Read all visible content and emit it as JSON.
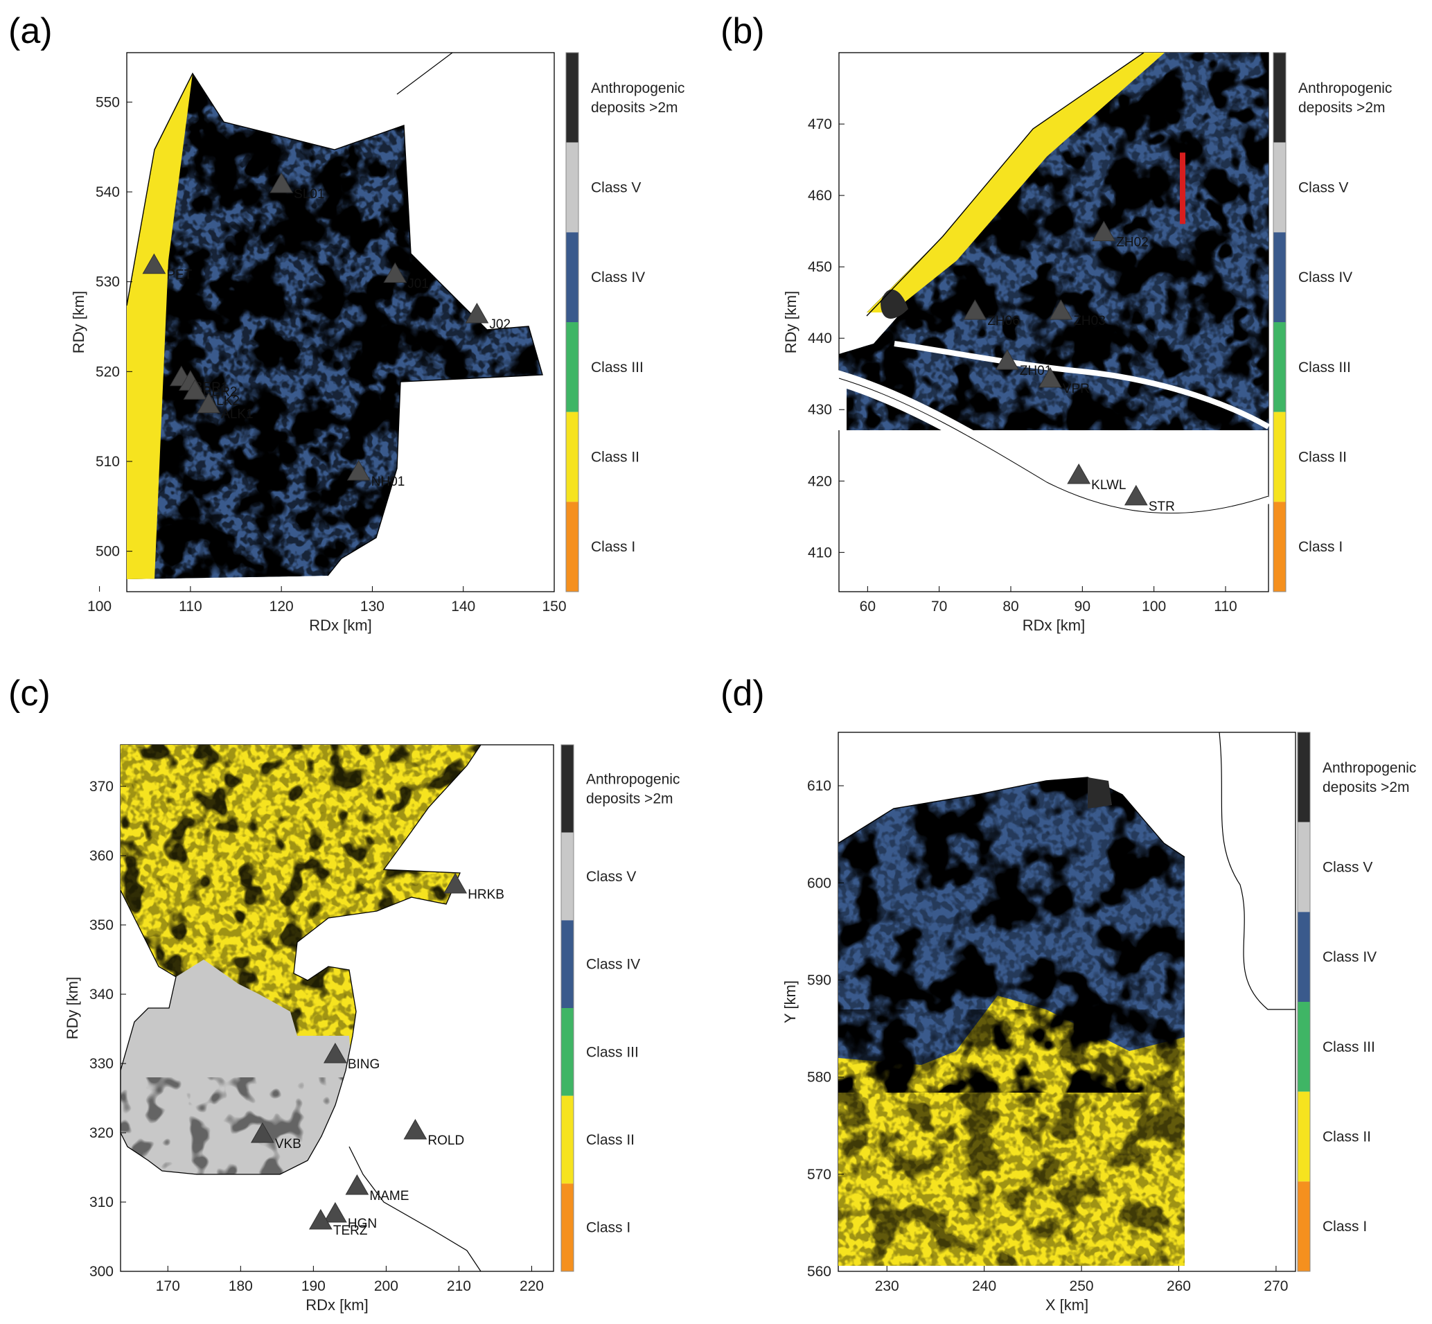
{
  "classes": [
    {
      "key": "anthro",
      "label_lines": [
        "Anthropogenic",
        "deposits >2m"
      ],
      "color": "#2b2b2b"
    },
    {
      "key": "c5",
      "label_lines": [
        "Class V"
      ],
      "color": "#c8c8c8"
    },
    {
      "key": "c4",
      "label_lines": [
        "Class IV"
      ],
      "color": "#3a5a8c"
    },
    {
      "key": "c3",
      "label_lines": [
        "Class III"
      ],
      "color": "#3fb565"
    },
    {
      "key": "c2",
      "label_lines": [
        "Class II"
      ],
      "color": "#f6e31f"
    },
    {
      "key": "c1",
      "label_lines": [
        "Class I"
      ],
      "color": "#f5901e"
    }
  ],
  "panels": [
    {
      "id": "a",
      "letter": "(a)",
      "xlabel": "RDx [km]",
      "ylabel": "RDy [km]",
      "xlim": [
        103,
        150
      ],
      "ylim": [
        495.5,
        555.5
      ],
      "xticks": [
        100,
        110,
        120,
        130,
        140,
        150
      ],
      "yticks": [
        500,
        510,
        520,
        530,
        540,
        550
      ],
      "stations": [
        {
          "name": "SL01",
          "x": 120,
          "y": 541
        },
        {
          "name": "PET",
          "x": 106,
          "y": 532
        },
        {
          "name": "J01",
          "x": 132.5,
          "y": 531
        },
        {
          "name": "J02",
          "x": 141.5,
          "y": 526.5
        },
        {
          "name": "BER1",
          "x": 109,
          "y": 519.5
        },
        {
          "name": "BER2",
          "x": 110,
          "y": 519
        },
        {
          "name": "ALK2",
          "x": 110.5,
          "y": 518
        },
        {
          "name": "ALK1",
          "x": 112,
          "y": 516.5
        },
        {
          "name": "NH01",
          "x": 128.5,
          "y": 509
        }
      ]
    },
    {
      "id": "b",
      "letter": "(b)",
      "xlabel": "RDx [km]",
      "ylabel": "RDy [km]",
      "xlim": [
        56,
        116
      ],
      "ylim": [
        404.5,
        480
      ],
      "xticks": [
        60,
        70,
        80,
        90,
        100,
        110
      ],
      "yticks": [
        410,
        420,
        430,
        440,
        450,
        460,
        470
      ],
      "stations": [
        {
          "name": "ZH02",
          "x": 93,
          "y": 455
        },
        {
          "name": "ZH06",
          "x": 75,
          "y": 444
        },
        {
          "name": "ZH03",
          "x": 87,
          "y": 444
        },
        {
          "name": "ZH01",
          "x": 79.5,
          "y": 437
        },
        {
          "name": "VPR",
          "x": 85.5,
          "y": 434.5
        },
        {
          "name": "KLWL",
          "x": 89.5,
          "y": 421
        },
        {
          "name": "STR",
          "x": 97.5,
          "y": 418
        }
      ],
      "red_line": {
        "x": 104,
        "y1": 456,
        "y2": 466
      }
    },
    {
      "id": "c",
      "letter": "(c)",
      "xlabel": "RDx [km]",
      "ylabel": "RDy [km]",
      "xlim": [
        163.5,
        223
      ],
      "ylim": [
        300,
        376
      ],
      "xticks": [
        170,
        180,
        190,
        200,
        210,
        220
      ],
      "yticks": [
        300,
        310,
        320,
        330,
        340,
        350,
        360,
        370
      ],
      "stations": [
        {
          "name": "HRKB",
          "x": 209.5,
          "y": 356
        },
        {
          "name": "BING",
          "x": 193,
          "y": 331.5
        },
        {
          "name": "VKB",
          "x": 183,
          "y": 320
        },
        {
          "name": "ROLD",
          "x": 204,
          "y": 320.5
        },
        {
          "name": "MAME",
          "x": 196,
          "y": 312.5
        },
        {
          "name": "HGN",
          "x": 193,
          "y": 308.5
        },
        {
          "name": "TERZ",
          "x": 191,
          "y": 307.5
        }
      ]
    },
    {
      "id": "d",
      "letter": "(d)",
      "xlabel": "X [km]",
      "ylabel": "Y [km]",
      "xlim": [
        225,
        272
      ],
      "ylim": [
        560,
        615.5
      ],
      "xticks": [
        230,
        240,
        250,
        260,
        270
      ],
      "yticks": [
        560,
        570,
        580,
        590,
        600,
        610
      ],
      "stations": []
    }
  ]
}
